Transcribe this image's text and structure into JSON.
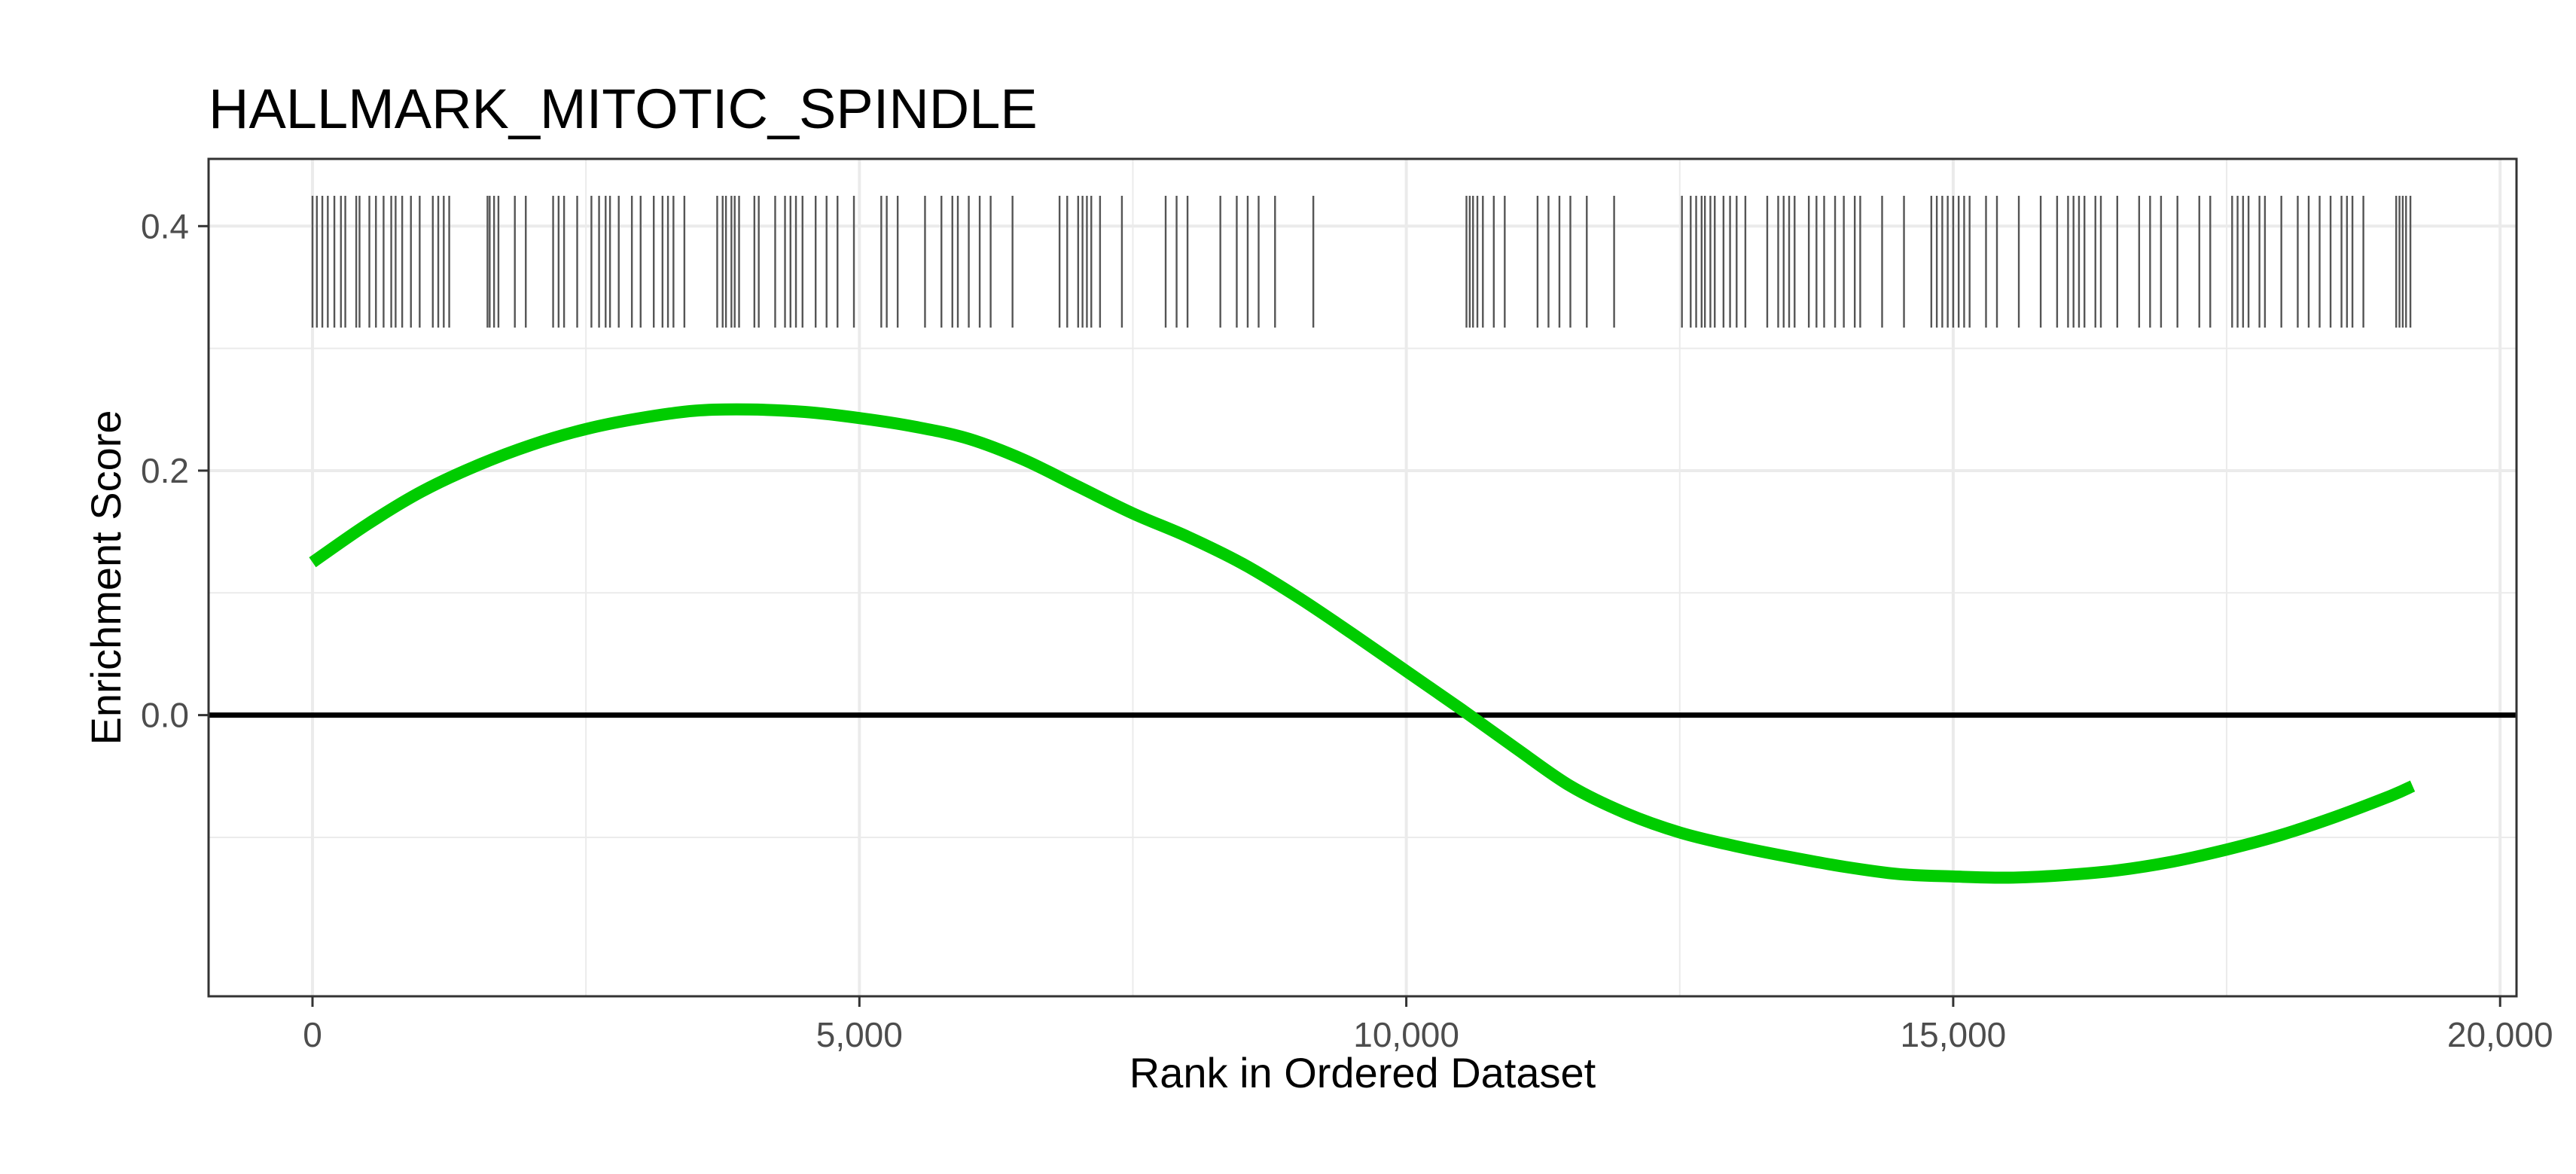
{
  "chart_data": {
    "type": "line",
    "title": "HALLMARK_MITOTIC_SPINDLE",
    "xlabel": "Rank in Ordered Dataset",
    "ylabel": "Enrichment Score",
    "xlim": [
      -950,
      20150
    ],
    "ylim": [
      -0.23,
      0.455
    ],
    "x_ticks": [
      0,
      5000,
      10000,
      15000,
      20000
    ],
    "x_tick_labels": [
      "0",
      "5,000",
      "10,000",
      "15,000",
      "20,000"
    ],
    "y_ticks": [
      0.0,
      0.2,
      0.4
    ],
    "y_tick_labels": [
      "0.0",
      "0.2",
      "0.4"
    ],
    "grid": true,
    "reference_line_y": 0,
    "colors": {
      "curve": "#00cc00",
      "gene_ticks": "#555555",
      "zero_line": "#000000",
      "grid": "#ebebeb",
      "panel_border": "#333333"
    },
    "series": [
      {
        "x": [
          0,
          500,
          1000,
          1500,
          2000,
          2500,
          3000,
          3500,
          4000,
          4500,
          5000,
          5500,
          6000,
          6500,
          7000,
          7500,
          8000,
          8500,
          9000,
          9500,
          10000,
          10500,
          11000,
          11500,
          12000,
          12500,
          13000,
          13500,
          14000,
          14500,
          15000,
          15500,
          16000,
          16500,
          17000,
          17500,
          18000,
          18500,
          19000,
          19200
        ],
        "y": [
          0.125,
          0.156,
          0.183,
          0.204,
          0.221,
          0.234,
          0.243,
          0.249,
          0.25,
          0.248,
          0.243,
          0.236,
          0.226,
          0.209,
          0.187,
          0.165,
          0.146,
          0.124,
          0.097,
          0.067,
          0.036,
          0.005,
          -0.027,
          -0.058,
          -0.08,
          -0.096,
          -0.107,
          -0.116,
          -0.124,
          -0.13,
          -0.132,
          -0.133,
          -0.131,
          -0.127,
          -0.12,
          -0.11,
          -0.098,
          -0.083,
          -0.066,
          -0.058
        ]
      }
    ],
    "gene_hits": [
      0,
      40,
      90,
      140,
      200,
      260,
      300,
      400,
      430,
      520,
      580,
      650,
      720,
      760,
      820,
      900,
      980,
      1100,
      1150,
      1200,
      1250,
      1600,
      1620,
      1660,
      1700,
      1850,
      1950,
      2200,
      2250,
      2300,
      2420,
      2550,
      2620,
      2680,
      2720,
      2800,
      2920,
      3000,
      3120,
      3200,
      3250,
      3300,
      3400,
      3700,
      3750,
      3780,
      3830,
      3860,
      3900,
      4040,
      4080,
      4230,
      4320,
      4370,
      4420,
      4480,
      4600,
      4700,
      4800,
      4950,
      5200,
      5250,
      5350,
      5600,
      5750,
      5850,
      5900,
      6000,
      6100,
      6200,
      6400,
      6830,
      6900,
      7000,
      7040,
      7080,
      7120,
      7200,
      7400,
      7800,
      7900,
      8000,
      8300,
      8450,
      8550,
      8650,
      8800,
      9150,
      10550,
      10580,
      10610,
      10650,
      10700,
      10800,
      10900,
      11200,
      11300,
      11400,
      11500,
      11650,
      11900,
      12520,
      12600,
      12650,
      12700,
      12730,
      12780,
      12820,
      12900,
      12960,
      13020,
      13100,
      13300,
      13400,
      13450,
      13500,
      13550,
      13680,
      13750,
      13820,
      13920,
      14000,
      14100,
      14150,
      14350,
      14550,
      14800,
      14850,
      14900,
      14950,
      15000,
      15050,
      15100,
      15150,
      15300,
      15400,
      15600,
      15800,
      15950,
      16050,
      16100,
      16150,
      16200,
      16300,
      16350,
      16500,
      16700,
      16800,
      16900,
      17050,
      17250,
      17350,
      17550,
      17600,
      17650,
      17700,
      17800,
      17850,
      18000,
      18150,
      18250,
      18350,
      18450,
      18550,
      18600,
      18650,
      18750,
      19050,
      19080,
      19110,
      19140,
      19180
    ]
  }
}
